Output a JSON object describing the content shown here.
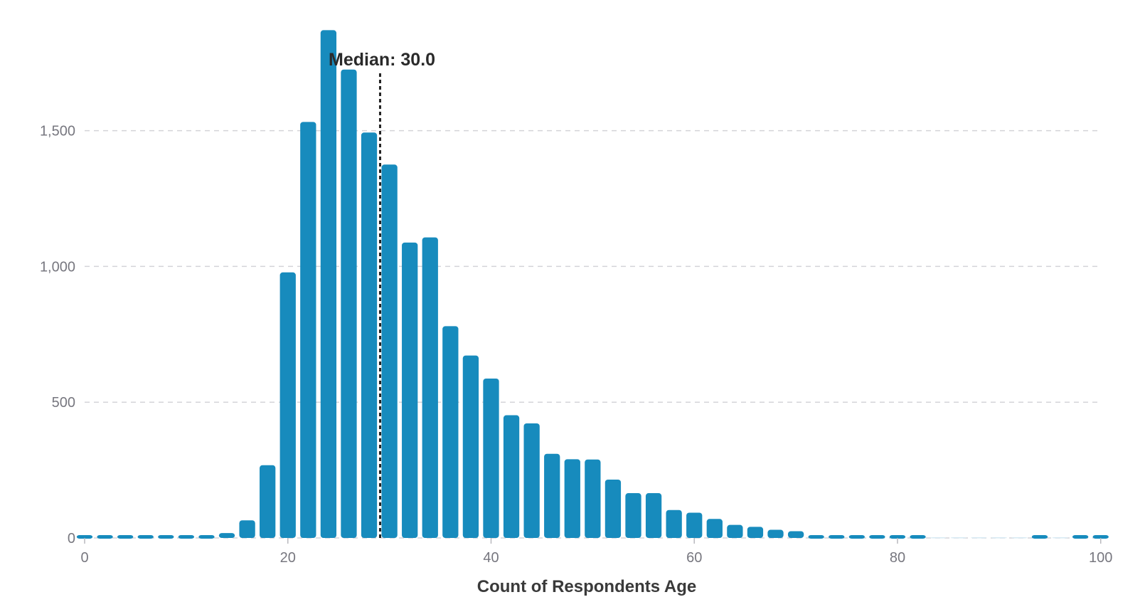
{
  "chart_data": {
    "type": "bar",
    "title": "",
    "xlabel": "Count of Respondents Age",
    "ylabel": "",
    "xlim": [
      0,
      101
    ],
    "ylim": [
      0,
      1900
    ],
    "x_ticks": [
      0,
      20,
      40,
      60,
      80,
      100
    ],
    "x_tick_labels": [
      "0",
      "20",
      "40",
      "60",
      "80",
      "100"
    ],
    "y_ticks": [
      0,
      500,
      1000,
      1500
    ],
    "y_tick_labels": [
      "0",
      "500",
      "1,000",
      "1,500"
    ],
    "grid": true,
    "bar_color": "#178bbd",
    "bin_width": 2,
    "bins": [
      {
        "x": 0,
        "y": 12
      },
      {
        "x": 2,
        "y": 3
      },
      {
        "x": 4,
        "y": 1
      },
      {
        "x": 6,
        "y": 2
      },
      {
        "x": 8,
        "y": 1
      },
      {
        "x": 10,
        "y": 3
      },
      {
        "x": 12,
        "y": 4
      },
      {
        "x": 14,
        "y": 18
      },
      {
        "x": 16,
        "y": 65
      },
      {
        "x": 18,
        "y": 268
      },
      {
        "x": 20,
        "y": 978
      },
      {
        "x": 22,
        "y": 1532
      },
      {
        "x": 24,
        "y": 1870
      },
      {
        "x": 26,
        "y": 1725
      },
      {
        "x": 28,
        "y": 1493
      },
      {
        "x": 30,
        "y": 1375
      },
      {
        "x": 32,
        "y": 1088
      },
      {
        "x": 34,
        "y": 1107
      },
      {
        "x": 36,
        "y": 780
      },
      {
        "x": 38,
        "y": 672
      },
      {
        "x": 40,
        "y": 587
      },
      {
        "x": 42,
        "y": 452
      },
      {
        "x": 44,
        "y": 422
      },
      {
        "x": 46,
        "y": 310
      },
      {
        "x": 48,
        "y": 290
      },
      {
        "x": 50,
        "y": 289
      },
      {
        "x": 52,
        "y": 215
      },
      {
        "x": 54,
        "y": 165
      },
      {
        "x": 56,
        "y": 165
      },
      {
        "x": 58,
        "y": 103
      },
      {
        "x": 60,
        "y": 93
      },
      {
        "x": 62,
        "y": 70
      },
      {
        "x": 64,
        "y": 48
      },
      {
        "x": 66,
        "y": 41
      },
      {
        "x": 68,
        "y": 30
      },
      {
        "x": 70,
        "y": 25
      },
      {
        "x": 72,
        "y": 12
      },
      {
        "x": 74,
        "y": 8
      },
      {
        "x": 76,
        "y": 6
      },
      {
        "x": 78,
        "y": 3
      },
      {
        "x": 80,
        "y": 2
      },
      {
        "x": 82,
        "y": 2
      },
      {
        "x": 84,
        "y": 0
      },
      {
        "x": 86,
        "y": 0
      },
      {
        "x": 88,
        "y": 0
      },
      {
        "x": 90,
        "y": 0
      },
      {
        "x": 92,
        "y": 0
      },
      {
        "x": 94,
        "y": 1
      },
      {
        "x": 96,
        "y": 0
      },
      {
        "x": 98,
        "y": 3
      },
      {
        "x": 100,
        "y": 9
      }
    ],
    "median": {
      "value": 30.0,
      "label": "Median: 30.0"
    }
  }
}
